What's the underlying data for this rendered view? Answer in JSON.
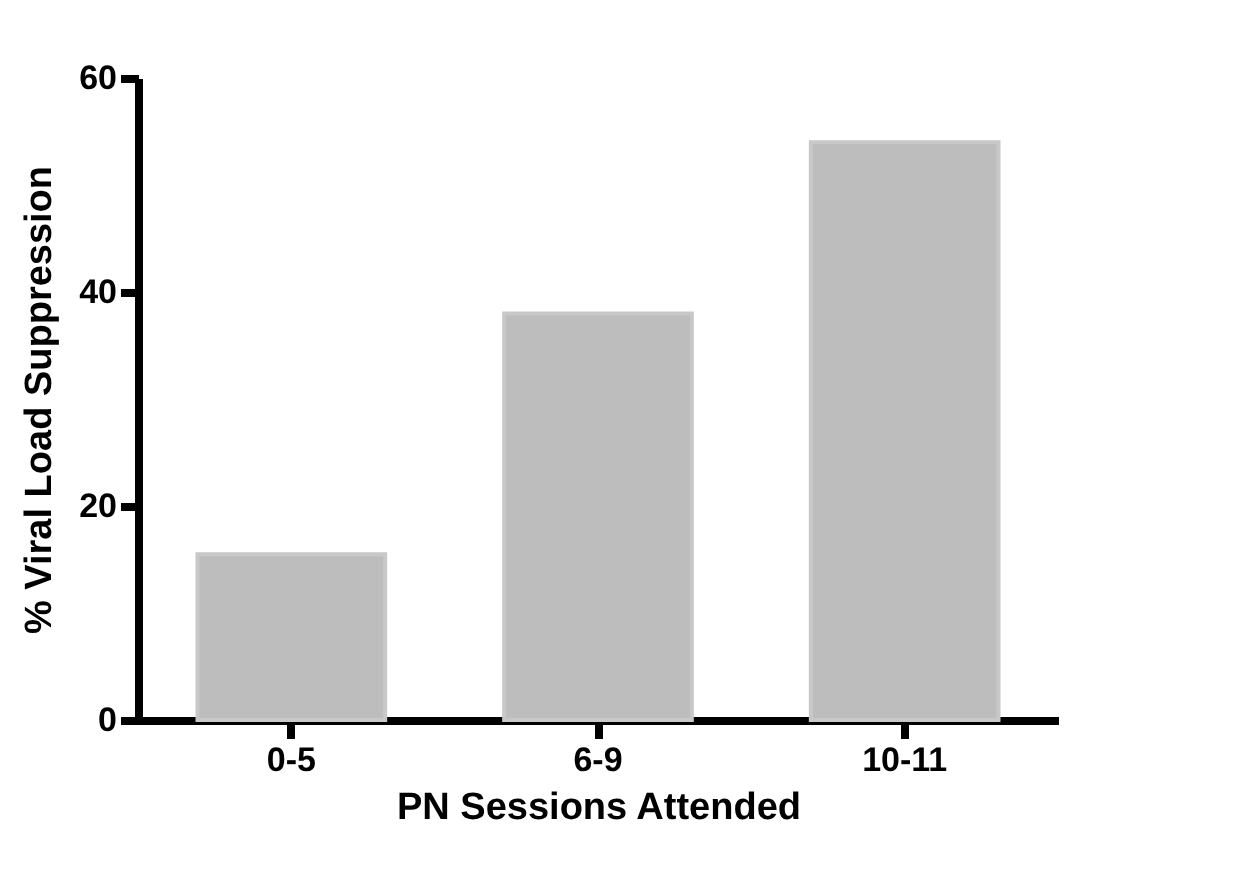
{
  "chart_data": {
    "type": "bar",
    "xlabel": "PN Sessions Attended",
    "ylabel": "% Viral Load Suppression",
    "categories": [
      "0-5",
      "6-9",
      "10-11"
    ],
    "values": [
      15.5,
      38,
      54
    ],
    "color": "#bdbdbd",
    "ylim": [
      0,
      60
    ],
    "yticks": [
      0,
      20,
      40,
      60
    ],
    "grid": false
  }
}
